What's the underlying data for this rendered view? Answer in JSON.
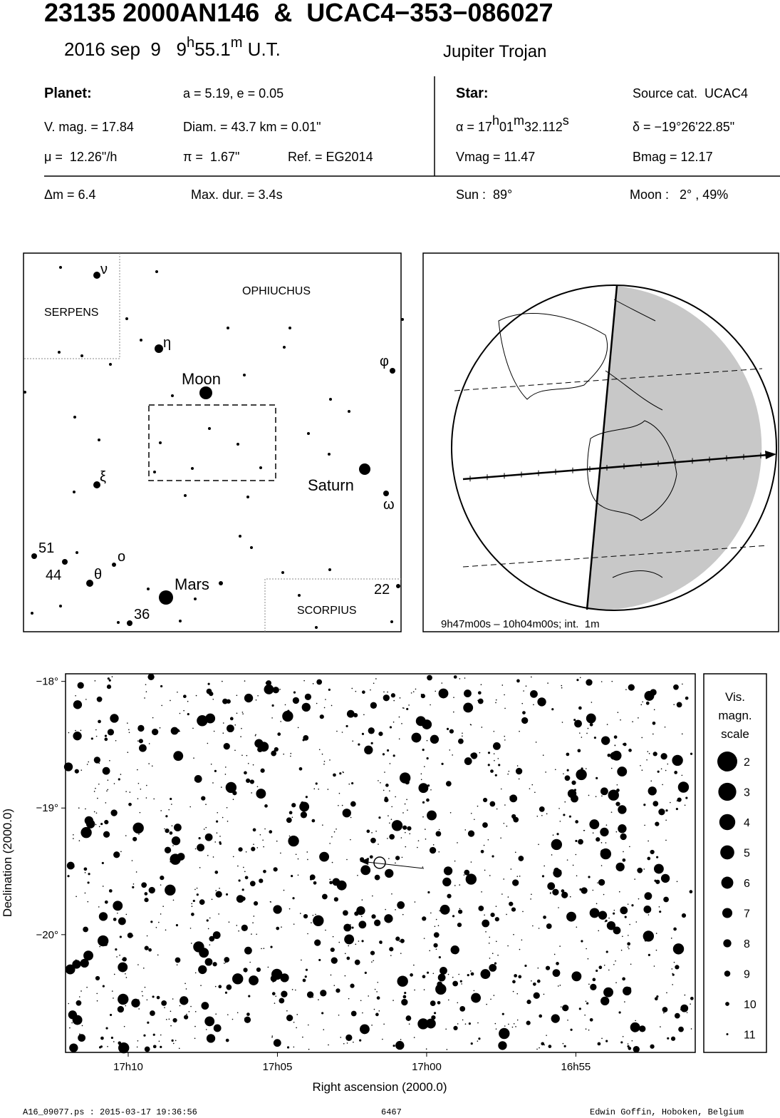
{
  "header": {
    "title": "23135 2000AN146  &  UCAC4−353−086027",
    "date": [
      "2016 sep  9   9",
      "h",
      "55.1",
      "m",
      " U.T."
    ],
    "class": "Jupiter Trojan"
  },
  "planet": {
    "label": "Planet:",
    "orbit": "a = 5.19, e = 0.05",
    "vmag": "V. mag. = 17.84",
    "diam": "Diam. = 43.7 km = 0.01\"",
    "mu": "μ =  12.26\"/h",
    "pi": "π =  1.67\"",
    "ref": "Ref. = EG2014",
    "dm": "Δm = 6.4",
    "dur": "Max. dur. = 3.4s"
  },
  "star": {
    "label": "Star:",
    "source": "Source cat.  UCAC4",
    "alpha": [
      "α = 17",
      "h",
      "01",
      "m",
      "32.112",
      "s"
    ],
    "delta": "δ = −19°26'22.85\"",
    "vmag": "Vmag = 11.47",
    "bmag": "Bmag = 12.17",
    "sun": "Sun :  89°",
    "moon": "Moon :   2° , 49%"
  },
  "finder": {
    "labels": [
      "ν",
      "SERPENS",
      "OPHIUCHUS",
      "η",
      "Moon",
      "φ",
      "ξ",
      "Saturn",
      "ω",
      "51",
      "44",
      "θ",
      "ο",
      "Mars",
      "22",
      "36",
      "SCORPIUS"
    ]
  },
  "globe": {
    "caption": "9h47m00s – 10h04m00s; int.  1m"
  },
  "chart_data": {
    "type": "scatter",
    "xlabel": "Right ascension (2000.0)",
    "ylabel": "Declination (2000.0)",
    "xlim": [
      1032.1,
      1011.0
    ],
    "ylim": [
      -20.93,
      -17.94
    ],
    "xticks": [
      {
        "value": 1030,
        "label": "17h10"
      },
      {
        "value": 1025,
        "label": "17h05"
      },
      {
        "value": 1020,
        "label": "17h00"
      },
      {
        "value": 1015,
        "label": "16h55"
      }
    ],
    "yticks": [
      {
        "value": -18,
        "label": "−18°"
      },
      {
        "value": -19,
        "label": "−19°"
      },
      {
        "value": -20,
        "label": "−20°"
      }
    ],
    "legend_title": [
      "Vis.",
      "magn.",
      "scale"
    ],
    "legend_magnitudes": [
      2,
      3,
      4,
      5,
      6,
      7,
      8,
      9,
      10,
      11
    ]
  },
  "footer": {
    "left": "A16_09077.ps : 2015-03-17 19:36:56",
    "center": "6467",
    "right": "Edwin Goffin, Hoboken, Belgium"
  }
}
